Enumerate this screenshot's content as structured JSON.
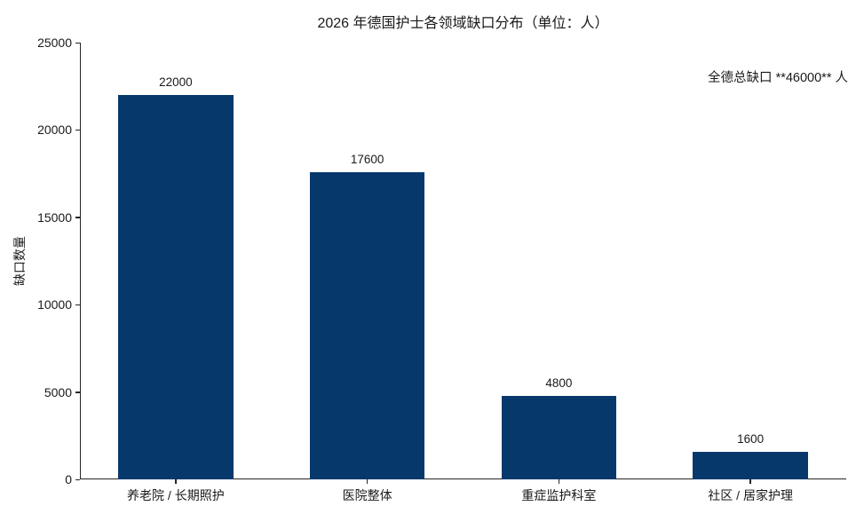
{
  "chart_data": {
    "type": "bar",
    "title": "2026 年德国护士各领域缺口分布（单位：人）",
    "ylabel": "缺口数量",
    "xlabel": "",
    "categories": [
      "养老院 / 长期照护",
      "医院整体",
      "重症监护科室",
      "社区 / 居家护理"
    ],
    "values": [
      22000,
      17600,
      4800,
      1600
    ],
    "value_labels": [
      "22000",
      "17600",
      "4800",
      "1600"
    ],
    "annotation": "全德总缺口 **46000** 人",
    "ylim": [
      0,
      25000
    ],
    "yticks": [
      0,
      5000,
      10000,
      15000,
      20000,
      25000
    ],
    "bar_width_fraction": 0.6,
    "grid": false,
    "legend_position": "none",
    "colors": {
      "bar": "#06386C",
      "axis": "#262626",
      "text": "#1a1a1a",
      "background": "#ffffff"
    }
  }
}
